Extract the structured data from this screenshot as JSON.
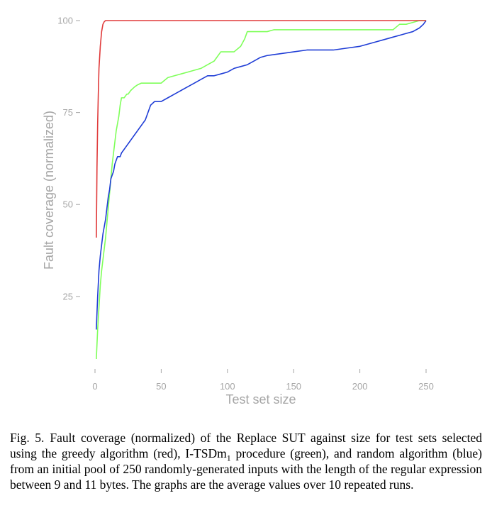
{
  "chart_data": {
    "type": "line",
    "title": "",
    "xlabel": "Test set size",
    "ylabel": "Fault coverage (normalized)",
    "xlim": [
      0,
      250
    ],
    "ylim": [
      8,
      100
    ],
    "x_ticks": [
      0,
      50,
      100,
      150,
      200,
      250
    ],
    "y_ticks": [
      25,
      50,
      75,
      100
    ],
    "grid": false,
    "legend": "none",
    "colors": {
      "red": "#e03a3a",
      "green": "#7fff5a",
      "blue": "#1f3dd6",
      "axis_text": "#a6a6a6"
    },
    "series": [
      {
        "color_key": "red",
        "x": [
          1,
          1.5,
          2,
          2.5,
          3,
          4,
          5,
          6,
          7,
          8,
          250
        ],
        "y": [
          41,
          60,
          72,
          80,
          87,
          93,
          97,
          99,
          99.7,
          100,
          100
        ]
      },
      {
        "color_key": "green",
        "x": [
          1,
          2,
          3,
          4,
          5,
          6,
          7,
          8,
          9,
          10,
          11,
          12,
          13,
          14,
          15,
          16,
          17,
          18,
          19,
          20,
          21,
          22,
          23,
          24,
          25,
          27,
          30,
          32,
          35,
          37,
          40,
          45,
          50,
          55,
          60,
          65,
          70,
          80,
          85,
          90,
          95,
          100,
          105,
          110,
          113,
          115,
          120,
          125,
          130,
          135,
          140,
          150,
          160,
          170,
          180,
          190,
          200,
          210,
          220,
          225,
          230,
          235,
          240,
          245,
          250
        ],
        "y": [
          8,
          16,
          22,
          28,
          32,
          35,
          38,
          41,
          45,
          49,
          53,
          57,
          61,
          64,
          67,
          70,
          72,
          74,
          77,
          79,
          79,
          79,
          79.5,
          80,
          80,
          81,
          82,
          82.5,
          83,
          83,
          83,
          83,
          83,
          84.5,
          85,
          85.5,
          86,
          87,
          88,
          89,
          91.5,
          91.5,
          91.5,
          93,
          95,
          97,
          97,
          97,
          97,
          97.5,
          97.5,
          97.5,
          97.5,
          97.5,
          97.5,
          97.5,
          97.5,
          97.5,
          97.5,
          97.5,
          99,
          99,
          99.5,
          100,
          100
        ]
      },
      {
        "color_key": "blue",
        "x": [
          1,
          2,
          3,
          4,
          5,
          6,
          7,
          8,
          9,
          10,
          11,
          12,
          13,
          14,
          15,
          16,
          17,
          18,
          19,
          20,
          22,
          24,
          26,
          28,
          30,
          32,
          34,
          36,
          38,
          40,
          42,
          45,
          48,
          50,
          55,
          60,
          65,
          70,
          75,
          80,
          85,
          90,
          95,
          100,
          105,
          110,
          115,
          120,
          125,
          130,
          140,
          150,
          160,
          170,
          180,
          190,
          200,
          210,
          220,
          225,
          230,
          235,
          240,
          245,
          248,
          250
        ],
        "y": [
          16,
          25,
          32,
          36,
          39,
          42,
          44,
          46,
          49,
          52,
          54,
          57,
          58,
          59,
          61,
          62,
          63,
          63,
          63,
          64,
          65,
          66,
          67,
          68,
          69,
          70,
          71,
          72,
          73,
          75,
          77,
          78,
          78,
          78,
          79,
          80,
          81,
          82,
          83,
          84,
          85,
          85,
          85.5,
          86,
          87,
          87.5,
          88,
          89,
          90,
          90.5,
          91,
          91.5,
          92,
          92,
          92,
          92.5,
          93,
          94,
          95,
          95.5,
          96,
          96.5,
          97,
          98,
          99,
          100
        ]
      }
    ]
  },
  "caption": {
    "label": "Fig. 5.",
    "text_before_sub": "Fault coverage (normalized) of the Replace SUT against size for test sets selected using the greedy algorithm (red), I-TSDm",
    "sub": "1",
    "text_after_sub": " procedure (green), and random algorithm (blue) from an initial pool of 250 randomly-generated inputs with the length of the regular expression between 9 and 11 bytes. The graphs are the average values over 10 repeated runs."
  }
}
